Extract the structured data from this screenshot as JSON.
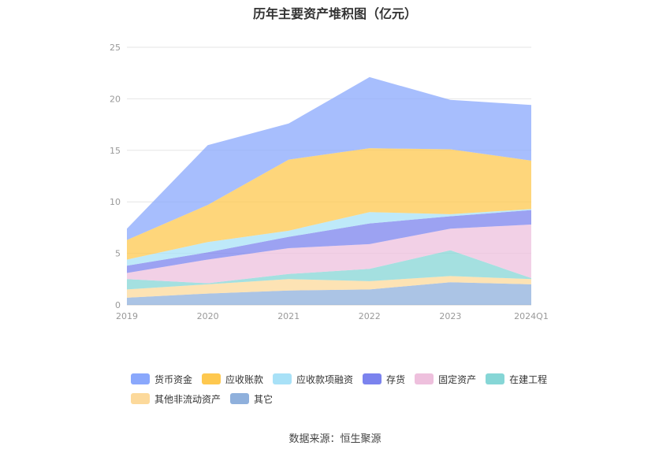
{
  "chart_data": {
    "type": "area",
    "stacked": true,
    "title": "历年主要资产堆积图（亿元）",
    "source": "数据来源：恒生聚源",
    "x": [
      "2019",
      "2020",
      "2021",
      "2022",
      "2023",
      "2024Q1"
    ],
    "yticks": [
      "0",
      "5",
      "10",
      "15",
      "20",
      "25"
    ],
    "ylim": [
      0,
      25
    ],
    "grid": true,
    "legend_position": "bottom",
    "series": [
      {
        "name": "其它",
        "color": "#8fb0dc",
        "values": [
          0.7,
          1.1,
          1.4,
          1.5,
          2.2,
          2.0
        ]
      },
      {
        "name": "其他非流动资产",
        "color": "#fcd99b",
        "values": [
          0.8,
          0.9,
          1.1,
          0.8,
          0.6,
          0.5
        ]
      },
      {
        "name": "在建工程",
        "color": "#86d6d6",
        "values": [
          1.0,
          0.1,
          0.5,
          1.2,
          2.5,
          0.1
        ]
      },
      {
        "name": "固定资产",
        "color": "#eec0dd",
        "values": [
          0.6,
          2.3,
          2.5,
          2.4,
          2.1,
          5.2
        ]
      },
      {
        "name": "存货",
        "color": "#7b83ee",
        "values": [
          0.7,
          0.7,
          1.1,
          2.0,
          1.2,
          1.4
        ]
      },
      {
        "name": "应收款项融资",
        "color": "#a8e1f7",
        "values": [
          0.6,
          1.0,
          0.6,
          1.1,
          0.2,
          0.1
        ]
      },
      {
        "name": "应收账款",
        "color": "#fec84f",
        "values": [
          1.9,
          3.6,
          6.9,
          6.2,
          6.3,
          4.7
        ]
      },
      {
        "name": "货币资金",
        "color": "#8aa8fc",
        "values": [
          1.1,
          5.8,
          3.5,
          6.9,
          4.8,
          5.4
        ]
      }
    ],
    "legend_order": [
      "货币资金",
      "应收账款",
      "应收款项融资",
      "存货",
      "固定资产",
      "在建工程",
      "其他非流动资产",
      "其它"
    ]
  }
}
